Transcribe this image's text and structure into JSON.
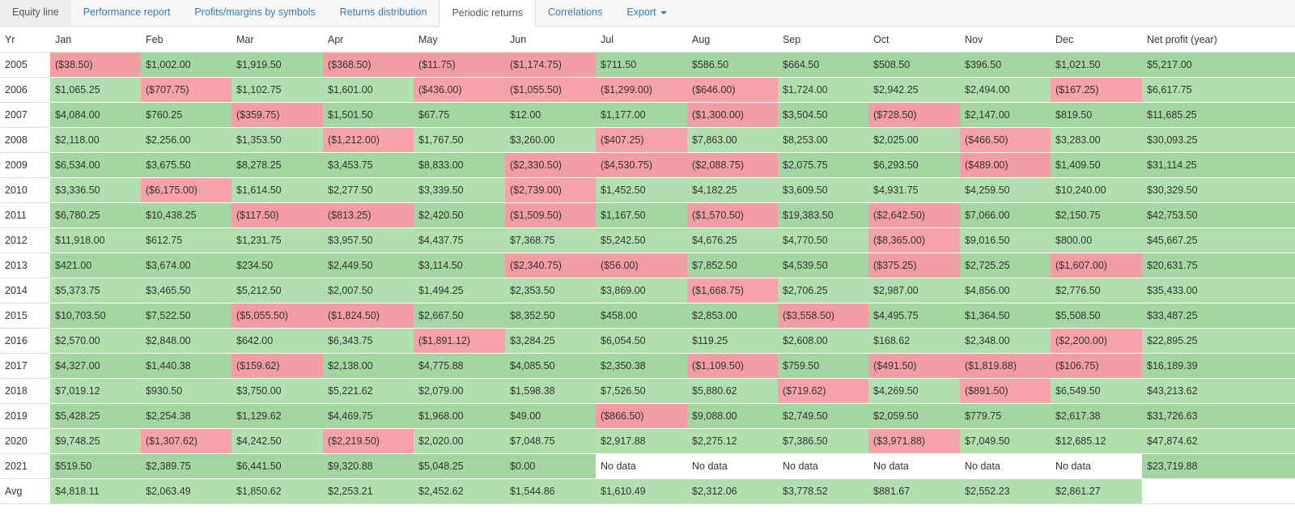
{
  "tabs": [
    {
      "label": "Equity line",
      "state": "dim"
    },
    {
      "label": "Performance report",
      "state": "normal"
    },
    {
      "label": "Profits/margins by symbols",
      "state": "normal"
    },
    {
      "label": "Returns distribution",
      "state": "normal"
    },
    {
      "label": "Periodic returns",
      "state": "active"
    },
    {
      "label": "Correlations",
      "state": "normal"
    },
    {
      "label": "Export",
      "state": "dropdown"
    }
  ],
  "colors": {
    "positive": "#b1dfae",
    "negative": "#f5a3a8",
    "link": "#337ab7"
  },
  "table": {
    "headers": [
      "Yr",
      "Jan",
      "Feb",
      "Mar",
      "Apr",
      "May",
      "Jun",
      "Jul",
      "Aug",
      "Sep",
      "Oct",
      "Nov",
      "Dec",
      "Net profit (year)"
    ],
    "rows": [
      [
        "2005",
        "($38.50)",
        "$1,002.00",
        "$1,919.50",
        "($368.50)",
        "($11.75)",
        "($1,174.75)",
        "$711.50",
        "$586.50",
        "$664.50",
        "$508.50",
        "$396.50",
        "$1,021.50",
        "$5,217.00"
      ],
      [
        "2006",
        "$1,065.25",
        "($707.75)",
        "$1,102.75",
        "$1,601.00",
        "($436.00)",
        "($1,055.50)",
        "($1,299.00)",
        "($646.00)",
        "$1,724.00",
        "$2,942.25",
        "$2,494.00",
        "($167.25)",
        "$6,617.75"
      ],
      [
        "2007",
        "$4,084.00",
        "$760.25",
        "($359.75)",
        "$1,501.50",
        "$67.75",
        "$12.00",
        "$1,177.00",
        "($1,300.00)",
        "$3,504.50",
        "($728.50)",
        "$2,147.00",
        "$819.50",
        "$11,685.25"
      ],
      [
        "2008",
        "$2,118.00",
        "$2,256.00",
        "$1,353.50",
        "($1,212.00)",
        "$1,767.50",
        "$3,260.00",
        "($407.25)",
        "$7,863.00",
        "$8,253.00",
        "$2,025.00",
        "($466.50)",
        "$3,283.00",
        "$30,093.25"
      ],
      [
        "2009",
        "$6,534.00",
        "$3,675.50",
        "$8,278.25",
        "$3,453.75",
        "$8,833.00",
        "($2,330.50)",
        "($4,530.75)",
        "($2,088.75)",
        "$2,075.75",
        "$6,293.50",
        "($489.00)",
        "$1,409.50",
        "$31,114.25"
      ],
      [
        "2010",
        "$3,336.50",
        "($6,175.00)",
        "$1,614.50",
        "$2,277.50",
        "$3,339.50",
        "($2,739.00)",
        "$1,452.50",
        "$4,182.25",
        "$3,609.50",
        "$4,931.75",
        "$4,259.50",
        "$10,240.00",
        "$30,329.50"
      ],
      [
        "2011",
        "$6,780.25",
        "$10,438.25",
        "($117.50)",
        "($813.25)",
        "$2,420.50",
        "($1,509.50)",
        "$1,167.50",
        "($1,570.50)",
        "$19,383.50",
        "($2,642.50)",
        "$7,066.00",
        "$2,150.75",
        "$42,753.50"
      ],
      [
        "2012",
        "$11,918.00",
        "$612.75",
        "$1,231.75",
        "$3,957.50",
        "$4,437.75",
        "$7,368.75",
        "$5,242.50",
        "$4,676.25",
        "$4,770.50",
        "($8,365.00)",
        "$9,016.50",
        "$800.00",
        "$45,667.25"
      ],
      [
        "2013",
        "$421.00",
        "$3,674.00",
        "$234.50",
        "$2,449.50",
        "$3,114.50",
        "($2,340.75)",
        "($56.00)",
        "$7,852.50",
        "$4,539.50",
        "($375.25)",
        "$2,725.25",
        "($1,607.00)",
        "$20,631.75"
      ],
      [
        "2014",
        "$5,373.75",
        "$3,465.50",
        "$5,212.50",
        "$2,007.50",
        "$1,494.25",
        "$2,353.50",
        "$3,869.00",
        "($1,668.75)",
        "$2,706.25",
        "$2,987.00",
        "$4,856.00",
        "$2,776.50",
        "$35,433.00"
      ],
      [
        "2015",
        "$10,703.50",
        "$7,522.50",
        "($5,055.50)",
        "($1,824.50)",
        "$2,667.50",
        "$8,352.50",
        "$458.00",
        "$2,853.00",
        "($3,558.50)",
        "$4,495.75",
        "$1,364.50",
        "$5,508.50",
        "$33,487.25"
      ],
      [
        "2016",
        "$2,570.00",
        "$2,848.00",
        "$642.00",
        "$6,343.75",
        "($1,891.12)",
        "$3,284.25",
        "$6,054.50",
        "$119.25",
        "$2,608.00",
        "$168.62",
        "$2,348.00",
        "($2,200.00)",
        "$22,895.25"
      ],
      [
        "2017",
        "$4,327.00",
        "$1,440.38",
        "($159.62)",
        "$2,138.00",
        "$4,775.88",
        "$4,085.50",
        "$2,350.38",
        "($1,109.50)",
        "$759.50",
        "($491.50)",
        "($1,819.88)",
        "($106.75)",
        "$16,189.39"
      ],
      [
        "2018",
        "$7,019.12",
        "$930.50",
        "$3,750.00",
        "$5,221.62",
        "$2,079.00",
        "$1,598.38",
        "$7,526.50",
        "$5,880.62",
        "($719.62)",
        "$4,269.50",
        "($891.50)",
        "$6,549.50",
        "$43,213.62"
      ],
      [
        "2019",
        "$5,428.25",
        "$2,254.38",
        "$1,129.62",
        "$4,469.75",
        "$1,968.00",
        "$49.00",
        "($866.50)",
        "$9,088.00",
        "$2,749.50",
        "$2,059.50",
        "$779.75",
        "$2,617.38",
        "$31,726.63"
      ],
      [
        "2020",
        "$9,748.25",
        "($1,307.62)",
        "$4,242.50",
        "($2,219.50)",
        "$2,020.00",
        "$7,048.75",
        "$2,917.88",
        "$2,275.12",
        "$7,386.50",
        "($3,971.88)",
        "$7,049.50",
        "$12,685.12",
        "$47,874.62"
      ],
      [
        "2021",
        "$519.50",
        "$2,389.75",
        "$6,441.50",
        "$9,320.88",
        "$5,048.25",
        "$0.00",
        "No data",
        "No data",
        "No data",
        "No data",
        "No data",
        "No data",
        "$23,719.88"
      ],
      [
        "Avg",
        "$4,818.11",
        "$2,063.49",
        "$1,850.62",
        "$2,253.21",
        "$2,452.62",
        "$1,544.86",
        "$1,610.49",
        "$2,312.06",
        "$3,778.52",
        "$881.67",
        "$2,552.23",
        "$2,861.27",
        ""
      ]
    ]
  }
}
